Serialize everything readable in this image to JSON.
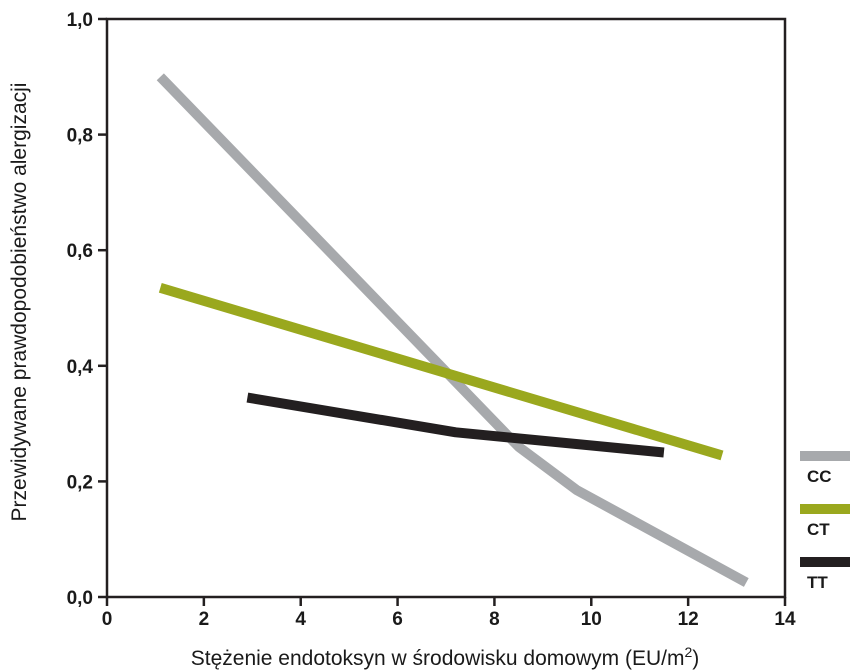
{
  "chart_data": {
    "type": "line",
    "xlabel": "Stężenie endotoksyn w środowisku domowym (EU/m",
    "xlabel_sup": "2",
    "xlabel_end": ")",
    "ylabel": "Przewidywane prawdopodobieństwo alergizacji",
    "xlim": [
      0,
      14
    ],
    "ylim": [
      0,
      1
    ],
    "x_ticks": [
      0,
      2,
      4,
      6,
      8,
      10,
      12,
      14
    ],
    "y_ticks": [
      0.0,
      0.2,
      0.4,
      0.6,
      0.8,
      1.0
    ],
    "x_tick_labels": [
      "0",
      "2",
      "4",
      "6",
      "8",
      "10",
      "12",
      "14"
    ],
    "y_tick_labels": [
      "0,0",
      "0,2",
      "0,4",
      "0,6",
      "0,8",
      "1,0"
    ],
    "grid": false,
    "legend_position": "right-bottom, outside plot",
    "series": [
      {
        "name": "CC",
        "color": "#a7a9ac",
        "points": [
          [
            1.1,
            0.9
          ],
          [
            8.5,
            0.26
          ],
          [
            9.7,
            0.185
          ],
          [
            13.2,
            0.025
          ]
        ]
      },
      {
        "name": "CT",
        "color": "#9aa81e",
        "points": [
          [
            1.1,
            0.535
          ],
          [
            12.7,
            0.245
          ]
        ]
      },
      {
        "name": "TT",
        "color": "#231f20",
        "points": [
          [
            2.9,
            0.345
          ],
          [
            7.2,
            0.285
          ],
          [
            11.5,
            0.25
          ]
        ]
      }
    ]
  }
}
